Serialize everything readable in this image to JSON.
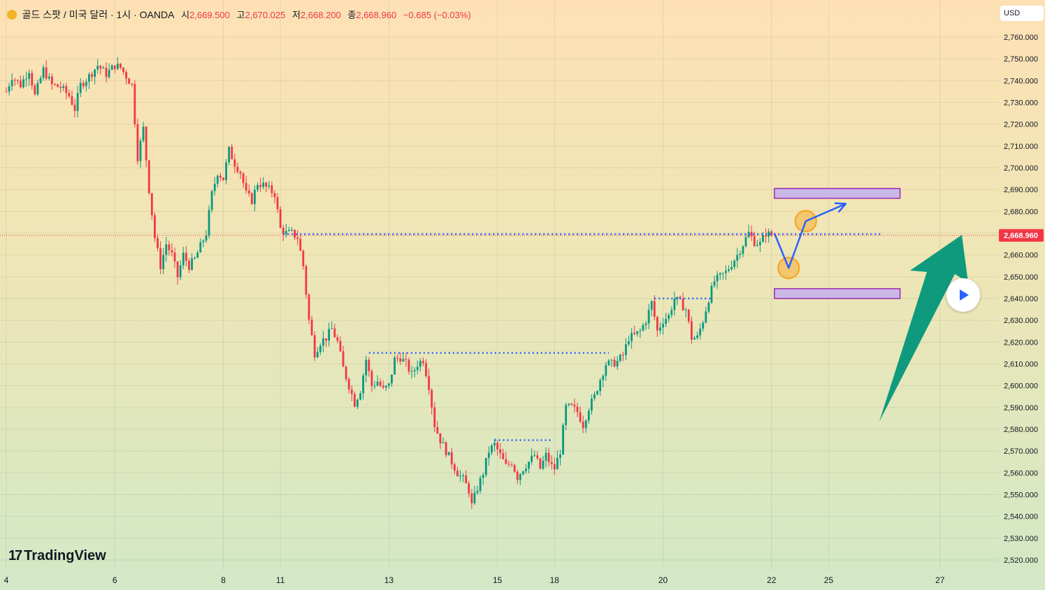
{
  "header": {
    "symbol": "골드 스팟 / 미국 달러 · 1시 · OANDA",
    "open_label": "시",
    "open": "2,669.500",
    "high_label": "고",
    "high": "2,670.025",
    "low_label": "저",
    "low": "2,668.200",
    "close_label": "종",
    "close": "2,668.960",
    "change": "−0.685 (−0.03%)"
  },
  "currency_label": "USD",
  "brand": "TradingView",
  "chart_data": {
    "type": "candlestick",
    "instrument": "골드 스팟 / 미국 달러",
    "timeframe": "1시",
    "source": "OANDA",
    "ylim": [
      2515,
      2768
    ],
    "y_ticks": [
      "2,760.000",
      "2,750.000",
      "2,740.000",
      "2,730.000",
      "2,720.000",
      "2,710.000",
      "2,700.000",
      "2,690.000",
      "2,680.000",
      "2,670.000",
      "2,660.000",
      "2,650.000",
      "2,640.000",
      "2,630.000",
      "2,620.000",
      "2,610.000",
      "2,600.000",
      "2,590.000",
      "2,580.000",
      "2,570.000",
      "2,560.000",
      "2,550.000",
      "2,540.000",
      "2,530.000",
      "2,520.000"
    ],
    "x_ticks": [
      {
        "label": "4",
        "bar": 0
      },
      {
        "label": "6",
        "bar": 38
      },
      {
        "label": "8",
        "bar": 76
      },
      {
        "label": "11",
        "bar": 96
      },
      {
        "label": "13",
        "bar": 134
      },
      {
        "label": "15",
        "bar": 172
      },
      {
        "label": "18",
        "bar": 192
      },
      {
        "label": "20",
        "bar": 230
      },
      {
        "label": "22",
        "bar": 268
      },
      {
        "label": "25",
        "bar": 288
      },
      {
        "label": "27",
        "bar": 327
      }
    ],
    "last_price": 2668.96,
    "last_price_label": "2,668.960",
    "colors": {
      "up": "#089981",
      "down": "#f23645",
      "level": "#2962ff",
      "zone_fill": "#c9b8e6",
      "zone_border": "#9c27b0",
      "arrow": "#0f9a7d",
      "circle": "#f7a21b"
    },
    "price_path": [
      [
        0,
        2735
      ],
      [
        2,
        2742
      ],
      [
        5,
        2738
      ],
      [
        8,
        2745
      ],
      [
        10,
        2733
      ],
      [
        13,
        2745
      ],
      [
        16,
        2738
      ],
      [
        19,
        2737
      ],
      [
        22,
        2733
      ],
      [
        24,
        2727
      ],
      [
        26,
        2738
      ],
      [
        29,
        2742
      ],
      [
        32,
        2747
      ],
      [
        35,
        2743
      ],
      [
        38,
        2747
      ],
      [
        40,
        2746
      ],
      [
        42,
        2742
      ],
      [
        44,
        2738
      ],
      [
        46,
        2705
      ],
      [
        48,
        2718
      ],
      [
        50,
        2690
      ],
      [
        52,
        2668
      ],
      [
        54,
        2655
      ],
      [
        56,
        2665
      ],
      [
        58,
        2660
      ],
      [
        60,
        2650
      ],
      [
        62,
        2660
      ],
      [
        64,
        2655
      ],
      [
        66,
        2658
      ],
      [
        68,
        2664
      ],
      [
        70,
        2670
      ],
      [
        72,
        2688
      ],
      [
        74,
        2698
      ],
      [
        76,
        2695
      ],
      [
        78,
        2708
      ],
      [
        80,
        2702
      ],
      [
        82,
        2698
      ],
      [
        84,
        2688
      ],
      [
        86,
        2685
      ],
      [
        88,
        2693
      ],
      [
        90,
        2692
      ],
      [
        92,
        2690
      ],
      [
        94,
        2688
      ],
      [
        96,
        2672
      ],
      [
        98,
        2670
      ],
      [
        100,
        2670
      ],
      [
        102,
        2668
      ],
      [
        104,
        2655
      ],
      [
        106,
        2630
      ],
      [
        108,
        2615
      ],
      [
        110,
        2620
      ],
      [
        112,
        2622
      ],
      [
        114,
        2626
      ],
      [
        116,
        2620
      ],
      [
        118,
        2608
      ],
      [
        120,
        2600
      ],
      [
        122,
        2592
      ],
      [
        124,
        2598
      ],
      [
        126,
        2612
      ],
      [
        128,
        2600
      ],
      [
        130,
        2602
      ],
      [
        132,
        2598
      ],
      [
        134,
        2600
      ],
      [
        136,
        2612
      ],
      [
        138,
        2613
      ],
      [
        140,
        2610
      ],
      [
        142,
        2605
      ],
      [
        144,
        2610
      ],
      [
        146,
        2612
      ],
      [
        148,
        2600
      ],
      [
        150,
        2582
      ],
      [
        152,
        2575
      ],
      [
        154,
        2570
      ],
      [
        156,
        2565
      ],
      [
        158,
        2560
      ],
      [
        160,
        2557
      ],
      [
        162,
        2552
      ],
      [
        163,
        2545
      ],
      [
        165,
        2553
      ],
      [
        167,
        2560
      ],
      [
        169,
        2570
      ],
      [
        171,
        2573
      ],
      [
        173,
        2568
      ],
      [
        175,
        2563
      ],
      [
        177,
        2565
      ],
      [
        179,
        2558
      ],
      [
        181,
        2562
      ],
      [
        183,
        2565
      ],
      [
        185,
        2568
      ],
      [
        187,
        2562
      ],
      [
        189,
        2568
      ],
      [
        191,
        2563
      ],
      [
        192,
        2562
      ],
      [
        194,
        2570
      ],
      [
        196,
        2590
      ],
      [
        198,
        2590
      ],
      [
        200,
        2588
      ],
      [
        202,
        2582
      ],
      [
        204,
        2590
      ],
      [
        206,
        2595
      ],
      [
        208,
        2603
      ],
      [
        210,
        2610
      ],
      [
        212,
        2610
      ],
      [
        214,
        2611
      ],
      [
        216,
        2614
      ],
      [
        218,
        2622
      ],
      [
        220,
        2623
      ],
      [
        222,
        2625
      ],
      [
        224,
        2630
      ],
      [
        226,
        2638
      ],
      [
        228,
        2625
      ],
      [
        230,
        2630
      ],
      [
        232,
        2632
      ],
      [
        234,
        2640
      ],
      [
        236,
        2638
      ],
      [
        238,
        2635
      ],
      [
        240,
        2622
      ],
      [
        242,
        2622
      ],
      [
        244,
        2630
      ],
      [
        246,
        2640
      ],
      [
        248,
        2648
      ],
      [
        250,
        2650
      ],
      [
        252,
        2652
      ],
      [
        254,
        2656
      ],
      [
        256,
        2660
      ],
      [
        258,
        2665
      ],
      [
        260,
        2670
      ],
      [
        262,
        2666
      ],
      [
        264,
        2665
      ],
      [
        266,
        2670
      ],
      [
        268,
        2669
      ]
    ],
    "levels": [
      {
        "price": 2669.5,
        "from_bar": 97,
        "to_bar": 307
      },
      {
        "price": 2615.0,
        "from_bar": 127,
        "to_bar": 211
      },
      {
        "price": 2575.0,
        "from_bar": 171,
        "to_bar": 191
      },
      {
        "price": 2640.0,
        "from_bar": 227,
        "to_bar": 247
      }
    ],
    "zones": [
      {
        "from_bar": 269,
        "to_bar": 313,
        "top": 2690.5,
        "bottom": 2686.0
      },
      {
        "from_bar": 269,
        "to_bar": 313,
        "top": 2644.5,
        "bottom": 2640.0
      }
    ],
    "projection": [
      [
        269,
        2670.0
      ],
      [
        274,
        2654.0
      ],
      [
        280,
        2675.5
      ],
      [
        294,
        2683.5
      ]
    ],
    "circles": [
      {
        "bar": 274,
        "price": 2654.0
      },
      {
        "bar": 280,
        "price": 2675.5
      }
    ]
  }
}
